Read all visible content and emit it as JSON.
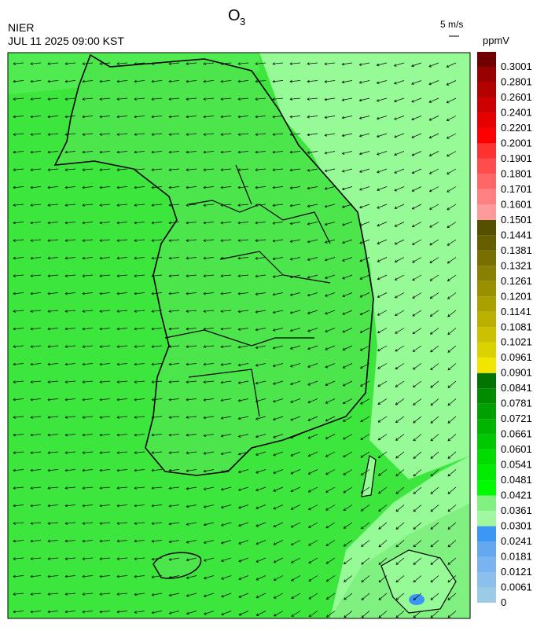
{
  "header": {
    "title": "O",
    "title_subscript": "3",
    "source": "NIER",
    "datetime": "JUL 11 2025 09:00 KST",
    "wind_scale": "5 m/s"
  },
  "colorbar": {
    "unit": "ppmV",
    "labels": [
      "0",
      "0.0061",
      "0.0121",
      "0.0181",
      "0.0241",
      "0.0301",
      "0.0361",
      "0.0421",
      "0.0481",
      "0.0541",
      "0.0601",
      "0.0661",
      "0.0721",
      "0.0781",
      "0.0841",
      "0.0901",
      "0.0961",
      "0.1021",
      "0.1081",
      "0.1141",
      "0.1201",
      "0.1261",
      "0.1321",
      "0.1381",
      "0.1441",
      "0.1501",
      "0.1601",
      "0.1701",
      "0.1801",
      "0.1901",
      "0.2001",
      "0.2201",
      "0.2401",
      "0.2601",
      "0.2801",
      "0.3001"
    ],
    "colors": [
      "#9ccbe8",
      "#8cc0ec",
      "#7ab4f0",
      "#64a8f0",
      "#3c96f5",
      "#a0f8a0",
      "#80f080",
      "#00fa00",
      "#00eb00",
      "#00dc00",
      "#00c800",
      "#00b400",
      "#00a000",
      "#008c00",
      "#007300",
      "#f0e600",
      "#dcd200",
      "#ccc000",
      "#bbb000",
      "#aaa000",
      "#999000",
      "#888000",
      "#776f00",
      "#665f00",
      "#554f00",
      "#ff9a9a",
      "#ff8080",
      "#ff6666",
      "#ff4c4c",
      "#ff3232",
      "#ff0000",
      "#e60000",
      "#cc0000",
      "#b30000",
      "#990000",
      "#700000"
    ]
  }
}
